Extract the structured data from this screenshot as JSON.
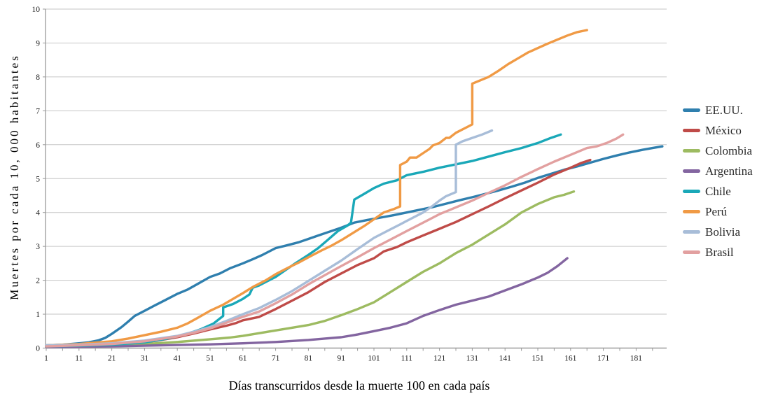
{
  "figure": {
    "background": "#ffffff"
  },
  "chart_data": {
    "type": "line",
    "title": "",
    "xlabel": "Días transcurridos desde la muerte 100 en cada país",
    "ylabel": "Muertes por cada 10, 000 habitantes",
    "xlim": [
      1,
      192
    ],
    "ylim": [
      0,
      10
    ],
    "x_ticks_labeled": [
      1,
      11,
      21,
      31,
      41,
      51,
      61,
      71,
      81,
      91,
      101,
      111,
      121,
      131,
      141,
      151,
      161,
      171,
      181
    ],
    "x_minor_tick_step": 5,
    "y_ticks": [
      0,
      1,
      2,
      3,
      4,
      5,
      6,
      7,
      8,
      9,
      10
    ],
    "grid": "horizontal",
    "gridline_color": "#c6c6c6",
    "axis_color": "#9a9a9a",
    "tick_label_color": "#1a1a1a",
    "legend_position": "right",
    "series": [
      {
        "name": "EE.UU.",
        "color": "#2f7fae",
        "points": [
          [
            1,
            0.08
          ],
          [
            6,
            0.1
          ],
          [
            11,
            0.14
          ],
          [
            14,
            0.17
          ],
          [
            17,
            0.23
          ],
          [
            19,
            0.3
          ],
          [
            21,
            0.42
          ],
          [
            24,
            0.62
          ],
          [
            26,
            0.78
          ],
          [
            28,
            0.95
          ],
          [
            31,
            1.1
          ],
          [
            34,
            1.25
          ],
          [
            37,
            1.4
          ],
          [
            41,
            1.6
          ],
          [
            44,
            1.72
          ],
          [
            47,
            1.88
          ],
          [
            51,
            2.1
          ],
          [
            54,
            2.2
          ],
          [
            57,
            2.35
          ],
          [
            61,
            2.5
          ],
          [
            64,
            2.62
          ],
          [
            67,
            2.75
          ],
          [
            71,
            2.95
          ],
          [
            74,
            3.02
          ],
          [
            78,
            3.12
          ],
          [
            81,
            3.22
          ],
          [
            84,
            3.32
          ],
          [
            87,
            3.42
          ],
          [
            91,
            3.55
          ],
          [
            95,
            3.7
          ],
          [
            99,
            3.78
          ],
          [
            103,
            3.85
          ],
          [
            107,
            3.92
          ],
          [
            111,
            4.0
          ],
          [
            115,
            4.08
          ],
          [
            119,
            4.16
          ],
          [
            123,
            4.26
          ],
          [
            127,
            4.36
          ],
          [
            131,
            4.45
          ],
          [
            135,
            4.55
          ],
          [
            139,
            4.65
          ],
          [
            143,
            4.76
          ],
          [
            147,
            4.88
          ],
          [
            151,
            5.02
          ],
          [
            155,
            5.14
          ],
          [
            159,
            5.26
          ],
          [
            163,
            5.36
          ],
          [
            167,
            5.47
          ],
          [
            171,
            5.58
          ],
          [
            175,
            5.68
          ],
          [
            179,
            5.77
          ],
          [
            183,
            5.85
          ],
          [
            186,
            5.9
          ],
          [
            189,
            5.95
          ]
        ]
      },
      {
        "name": "México",
        "color": "#bf4b48",
        "points": [
          [
            1,
            0.05
          ],
          [
            11,
            0.07
          ],
          [
            21,
            0.1
          ],
          [
            31,
            0.17
          ],
          [
            36,
            0.24
          ],
          [
            41,
            0.32
          ],
          [
            46,
            0.43
          ],
          [
            51,
            0.55
          ],
          [
            56,
            0.66
          ],
          [
            59,
            0.74
          ],
          [
            61,
            0.82
          ],
          [
            66,
            0.92
          ],
          [
            71,
            1.15
          ],
          [
            76,
            1.4
          ],
          [
            81,
            1.65
          ],
          [
            86,
            1.95
          ],
          [
            91,
            2.2
          ],
          [
            96,
            2.45
          ],
          [
            101,
            2.65
          ],
          [
            104,
            2.85
          ],
          [
            108,
            2.98
          ],
          [
            111,
            3.12
          ],
          [
            116,
            3.32
          ],
          [
            121,
            3.52
          ],
          [
            126,
            3.72
          ],
          [
            131,
            3.95
          ],
          [
            136,
            4.18
          ],
          [
            141,
            4.42
          ],
          [
            146,
            4.65
          ],
          [
            151,
            4.88
          ],
          [
            156,
            5.12
          ],
          [
            161,
            5.32
          ],
          [
            164,
            5.45
          ],
          [
            167,
            5.55
          ]
        ]
      },
      {
        "name": "Colombia",
        "color": "#9dbb61",
        "points": [
          [
            1,
            0.03
          ],
          [
            11,
            0.05
          ],
          [
            21,
            0.08
          ],
          [
            31,
            0.12
          ],
          [
            41,
            0.18
          ],
          [
            51,
            0.26
          ],
          [
            57,
            0.31
          ],
          [
            61,
            0.36
          ],
          [
            66,
            0.44
          ],
          [
            71,
            0.52
          ],
          [
            76,
            0.6
          ],
          [
            81,
            0.68
          ],
          [
            86,
            0.8
          ],
          [
            91,
            0.97
          ],
          [
            96,
            1.15
          ],
          [
            101,
            1.35
          ],
          [
            106,
            1.65
          ],
          [
            111,
            1.95
          ],
          [
            116,
            2.25
          ],
          [
            121,
            2.5
          ],
          [
            126,
            2.8
          ],
          [
            131,
            3.05
          ],
          [
            136,
            3.35
          ],
          [
            141,
            3.65
          ],
          [
            146,
            4.0
          ],
          [
            151,
            4.25
          ],
          [
            156,
            4.45
          ],
          [
            159,
            4.52
          ],
          [
            162,
            4.62
          ]
        ]
      },
      {
        "name": "Argentina",
        "color": "#8365a0",
        "points": [
          [
            1,
            0.03
          ],
          [
            11,
            0.04
          ],
          [
            21,
            0.05
          ],
          [
            31,
            0.07
          ],
          [
            41,
            0.09
          ],
          [
            51,
            0.11
          ],
          [
            61,
            0.14
          ],
          [
            71,
            0.18
          ],
          [
            81,
            0.24
          ],
          [
            86,
            0.28
          ],
          [
            91,
            0.32
          ],
          [
            96,
            0.4
          ],
          [
            101,
            0.5
          ],
          [
            106,
            0.6
          ],
          [
            111,
            0.73
          ],
          [
            116,
            0.95
          ],
          [
            121,
            1.12
          ],
          [
            126,
            1.28
          ],
          [
            131,
            1.4
          ],
          [
            136,
            1.52
          ],
          [
            141,
            1.7
          ],
          [
            146,
            1.88
          ],
          [
            151,
            2.08
          ],
          [
            154,
            2.22
          ],
          [
            157,
            2.42
          ],
          [
            160,
            2.65
          ]
        ]
      },
      {
        "name": "Chile",
        "color": "#1aa8b8",
        "points": [
          [
            1,
            0.05
          ],
          [
            11,
            0.07
          ],
          [
            21,
            0.1
          ],
          [
            31,
            0.17
          ],
          [
            38,
            0.28
          ],
          [
            44,
            0.42
          ],
          [
            48,
            0.55
          ],
          [
            52,
            0.72
          ],
          [
            55,
            0.95
          ],
          [
            55,
            1.2
          ],
          [
            58,
            1.3
          ],
          [
            61,
            1.45
          ],
          [
            63,
            1.58
          ],
          [
            64,
            1.78
          ],
          [
            66,
            1.85
          ],
          [
            69,
            2.0
          ],
          [
            71,
            2.1
          ],
          [
            74,
            2.3
          ],
          [
            77,
            2.5
          ],
          [
            81,
            2.75
          ],
          [
            84,
            2.95
          ],
          [
            87,
            3.2
          ],
          [
            90,
            3.45
          ],
          [
            93,
            3.62
          ],
          [
            94,
            3.7
          ],
          [
            95,
            4.38
          ],
          [
            98,
            4.55
          ],
          [
            101,
            4.72
          ],
          [
            104,
            4.85
          ],
          [
            108,
            4.95
          ],
          [
            111,
            5.1
          ],
          [
            116,
            5.2
          ],
          [
            121,
            5.32
          ],
          [
            126,
            5.42
          ],
          [
            131,
            5.52
          ],
          [
            136,
            5.65
          ],
          [
            141,
            5.78
          ],
          [
            146,
            5.9
          ],
          [
            151,
            6.05
          ],
          [
            155,
            6.2
          ],
          [
            158,
            6.3
          ]
        ]
      },
      {
        "name": "Perú",
        "color": "#f09a45",
        "points": [
          [
            1,
            0.08
          ],
          [
            11,
            0.12
          ],
          [
            21,
            0.2
          ],
          [
            26,
            0.28
          ],
          [
            31,
            0.38
          ],
          [
            36,
            0.48
          ],
          [
            41,
            0.6
          ],
          [
            44,
            0.72
          ],
          [
            47,
            0.88
          ],
          [
            51,
            1.1
          ],
          [
            55,
            1.28
          ],
          [
            58,
            1.45
          ],
          [
            61,
            1.62
          ],
          [
            64,
            1.8
          ],
          [
            68,
            2.0
          ],
          [
            71,
            2.18
          ],
          [
            75,
            2.38
          ],
          [
            78,
            2.52
          ],
          [
            81,
            2.68
          ],
          [
            85,
            2.88
          ],
          [
            88,
            3.02
          ],
          [
            91,
            3.18
          ],
          [
            95,
            3.42
          ],
          [
            98,
            3.6
          ],
          [
            101,
            3.8
          ],
          [
            104,
            4.0
          ],
          [
            107,
            4.1
          ],
          [
            109,
            4.18
          ],
          [
            109,
            5.4
          ],
          [
            111,
            5.5
          ],
          [
            112,
            5.62
          ],
          [
            114,
            5.62
          ],
          [
            116,
            5.75
          ],
          [
            118,
            5.88
          ],
          [
            119,
            5.98
          ],
          [
            121,
            6.05
          ],
          [
            123,
            6.2
          ],
          [
            124,
            6.2
          ],
          [
            126,
            6.35
          ],
          [
            128,
            6.45
          ],
          [
            130,
            6.55
          ],
          [
            131,
            6.6
          ],
          [
            131,
            7.8
          ],
          [
            133,
            7.88
          ],
          [
            136,
            8.0
          ],
          [
            139,
            8.18
          ],
          [
            142,
            8.38
          ],
          [
            145,
            8.55
          ],
          [
            148,
            8.72
          ],
          [
            151,
            8.85
          ],
          [
            154,
            8.98
          ],
          [
            157,
            9.1
          ],
          [
            160,
            9.22
          ],
          [
            163,
            9.32
          ],
          [
            166,
            9.38
          ]
        ]
      },
      {
        "name": "Bolivia",
        "color": "#a8bdd8",
        "points": [
          [
            1,
            0.08
          ],
          [
            11,
            0.1
          ],
          [
            21,
            0.14
          ],
          [
            31,
            0.22
          ],
          [
            41,
            0.36
          ],
          [
            46,
            0.48
          ],
          [
            51,
            0.62
          ],
          [
            56,
            0.8
          ],
          [
            61,
            1.0
          ],
          [
            66,
            1.18
          ],
          [
            71,
            1.42
          ],
          [
            76,
            1.68
          ],
          [
            81,
            1.98
          ],
          [
            86,
            2.28
          ],
          [
            91,
            2.58
          ],
          [
            96,
            2.92
          ],
          [
            101,
            3.25
          ],
          [
            106,
            3.5
          ],
          [
            109,
            3.65
          ],
          [
            111,
            3.75
          ],
          [
            114,
            3.9
          ],
          [
            116,
            4.0
          ],
          [
            119,
            4.2
          ],
          [
            121,
            4.35
          ],
          [
            123,
            4.48
          ],
          [
            126,
            4.6
          ],
          [
            126,
            6.0
          ],
          [
            128,
            6.1
          ],
          [
            131,
            6.2
          ],
          [
            134,
            6.3
          ],
          [
            137,
            6.42
          ]
        ]
      },
      {
        "name": "Brasil",
        "color": "#e2a0a0",
        "points": [
          [
            1,
            0.05
          ],
          [
            11,
            0.08
          ],
          [
            21,
            0.12
          ],
          [
            31,
            0.2
          ],
          [
            41,
            0.34
          ],
          [
            46,
            0.45
          ],
          [
            51,
            0.58
          ],
          [
            56,
            0.75
          ],
          [
            61,
            0.92
          ],
          [
            66,
            1.08
          ],
          [
            71,
            1.32
          ],
          [
            76,
            1.58
          ],
          [
            81,
            1.88
          ],
          [
            86,
            2.15
          ],
          [
            91,
            2.42
          ],
          [
            96,
            2.68
          ],
          [
            101,
            2.95
          ],
          [
            106,
            3.2
          ],
          [
            111,
            3.45
          ],
          [
            116,
            3.7
          ],
          [
            121,
            3.95
          ],
          [
            126,
            4.15
          ],
          [
            131,
            4.35
          ],
          [
            136,
            4.58
          ],
          [
            141,
            4.8
          ],
          [
            146,
            5.05
          ],
          [
            151,
            5.28
          ],
          [
            156,
            5.5
          ],
          [
            161,
            5.7
          ],
          [
            166,
            5.9
          ],
          [
            169,
            5.95
          ],
          [
            172,
            6.05
          ],
          [
            175,
            6.18
          ],
          [
            177,
            6.3
          ]
        ]
      }
    ]
  }
}
